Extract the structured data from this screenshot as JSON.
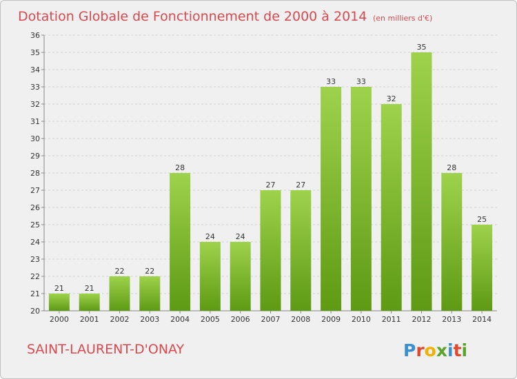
{
  "chart_data": {
    "type": "bar",
    "title": "Dotation Globale de Fonctionnement de 2000 à 2014",
    "subtitle": "(en milliers d'€)",
    "categories": [
      "2000",
      "2001",
      "2002",
      "2003",
      "2004",
      "2005",
      "2006",
      "2007",
      "2008",
      "2009",
      "2010",
      "2011",
      "2012",
      "2013",
      "2014"
    ],
    "values": [
      21,
      21,
      22,
      22,
      28,
      24,
      24,
      27,
      27,
      33,
      33,
      32,
      35,
      28,
      25
    ],
    "ylim": [
      20,
      36
    ],
    "yticks": [
      20,
      21,
      22,
      23,
      24,
      25,
      26,
      27,
      28,
      29,
      30,
      31,
      32,
      33,
      34,
      35,
      36
    ],
    "xlabel": "",
    "ylabel": "",
    "grid": "horizontal dashed",
    "colors": {
      "bar_top": "#9ed24c",
      "bar_bottom": "#5e9a14",
      "title": "#d64a4f"
    }
  },
  "footer": {
    "place": "SAINT-LAURENT-D'ONAY",
    "logo_letters": [
      "P",
      "r",
      "o",
      "x",
      "i",
      "t",
      "i"
    ],
    "logo_colors": [
      "#3a8fd0",
      "#e0482f",
      "#f0b000",
      "#58a52a",
      "#3a8fd0",
      "#e0482f",
      "#58a52a"
    ]
  }
}
